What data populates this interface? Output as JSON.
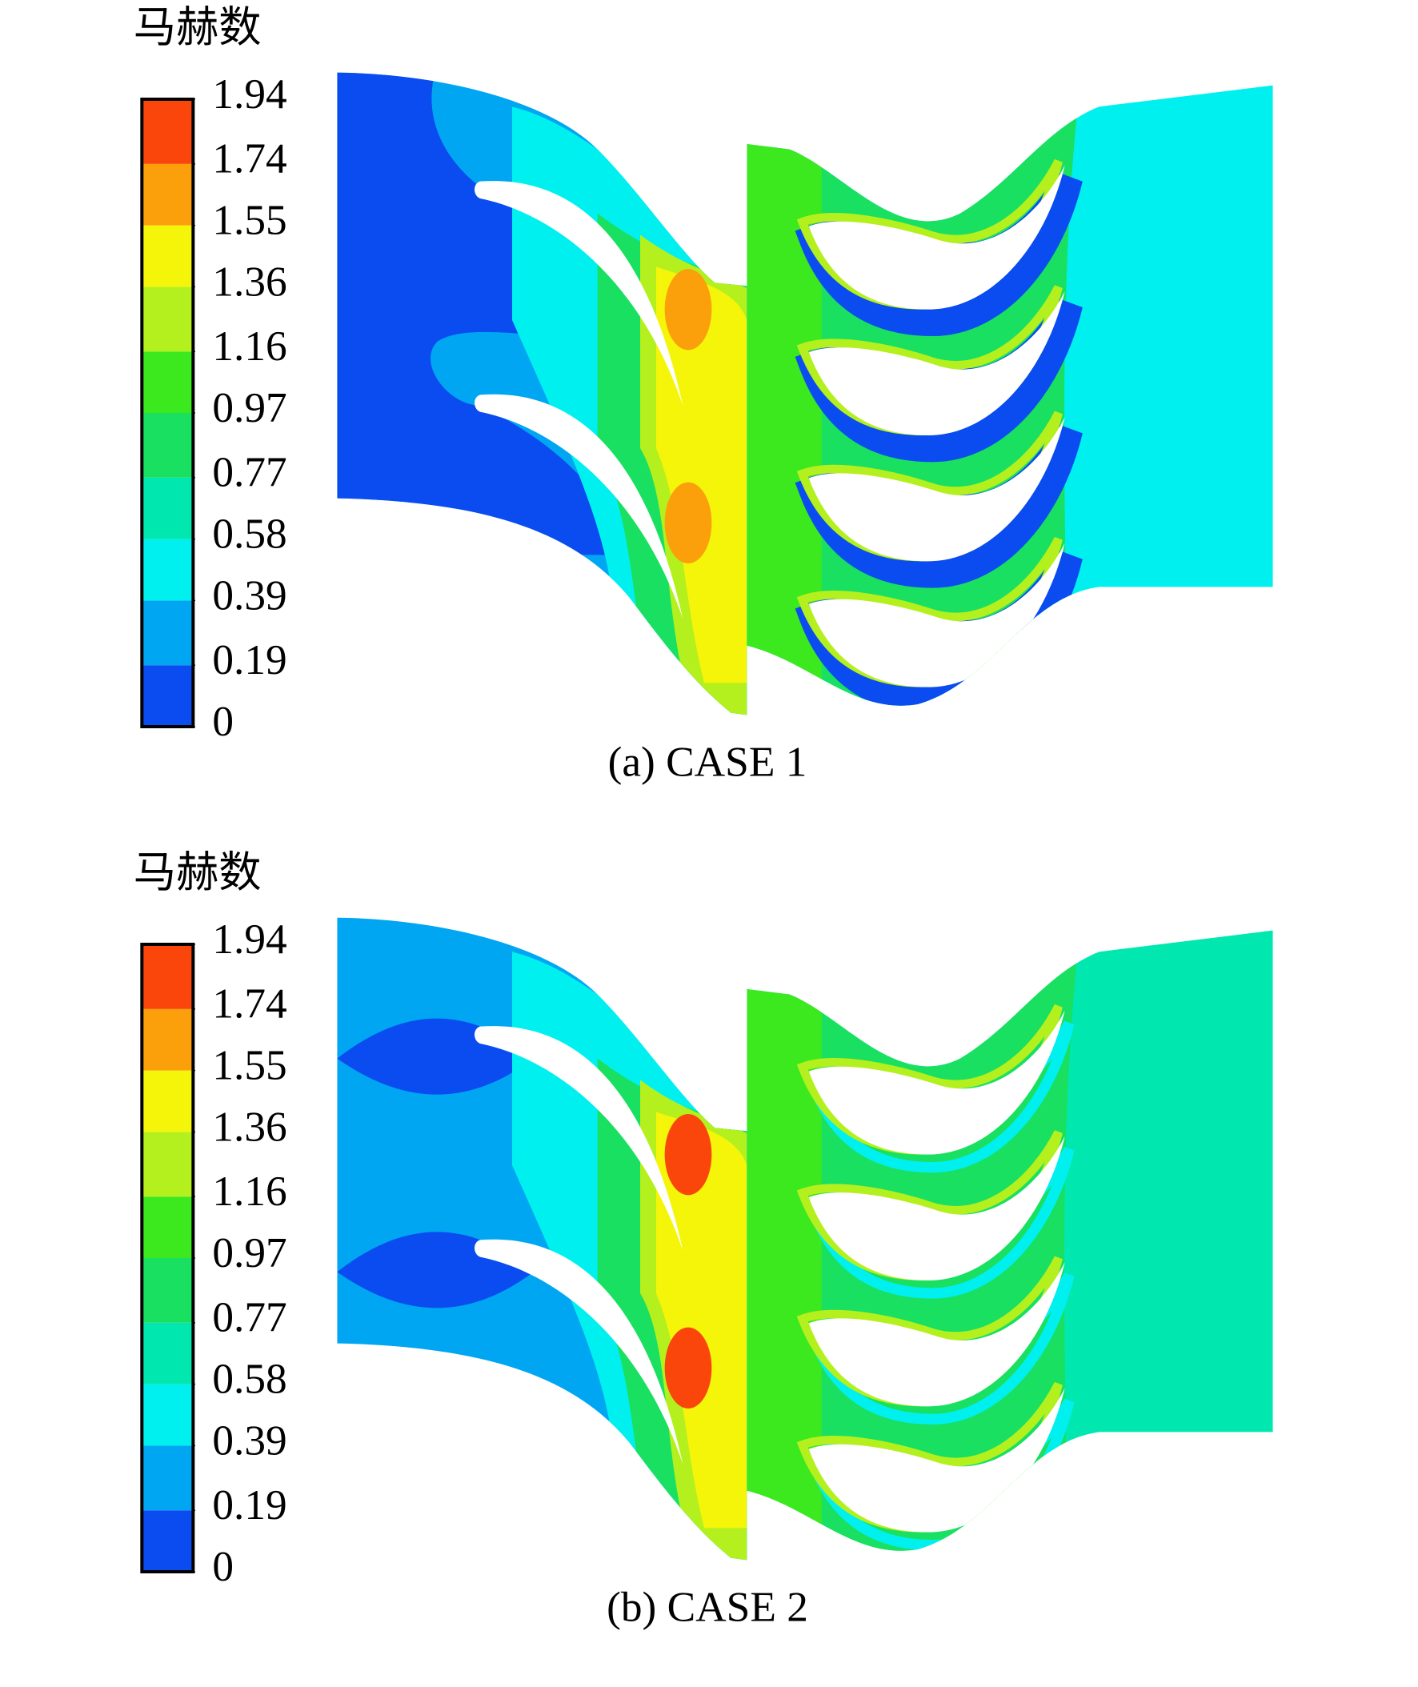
{
  "chart_data": [
    {
      "type": "contour",
      "colorbar_title": "马赫数",
      "caption": "(a) CASE 1",
      "ylim": [
        0,
        1.94
      ],
      "yticks": [
        0,
        0.19,
        0.39,
        0.58,
        0.77,
        0.97,
        1.16,
        1.36,
        1.55,
        1.74,
        1.94
      ],
      "colors": [
        "#0a4cf0",
        "#00a6f2",
        "#00f0f0",
        "#00e8b0",
        "#19e060",
        "#3ce81e",
        "#b4f01e",
        "#f5f50a",
        "#fba00a",
        "#fa460a"
      ]
    },
    {
      "type": "contour",
      "colorbar_title": "马赫数",
      "caption": "(b) CASE 2",
      "ylim": [
        0,
        1.94
      ],
      "yticks": [
        0,
        0.19,
        0.39,
        0.58,
        0.77,
        0.97,
        1.16,
        1.36,
        1.55,
        1.74,
        1.94
      ],
      "colors": [
        "#0a4cf0",
        "#00a6f2",
        "#00f0f0",
        "#00e8b0",
        "#19e060",
        "#3ce81e",
        "#b4f01e",
        "#f5f50a",
        "#fba00a",
        "#fa460a"
      ]
    }
  ]
}
